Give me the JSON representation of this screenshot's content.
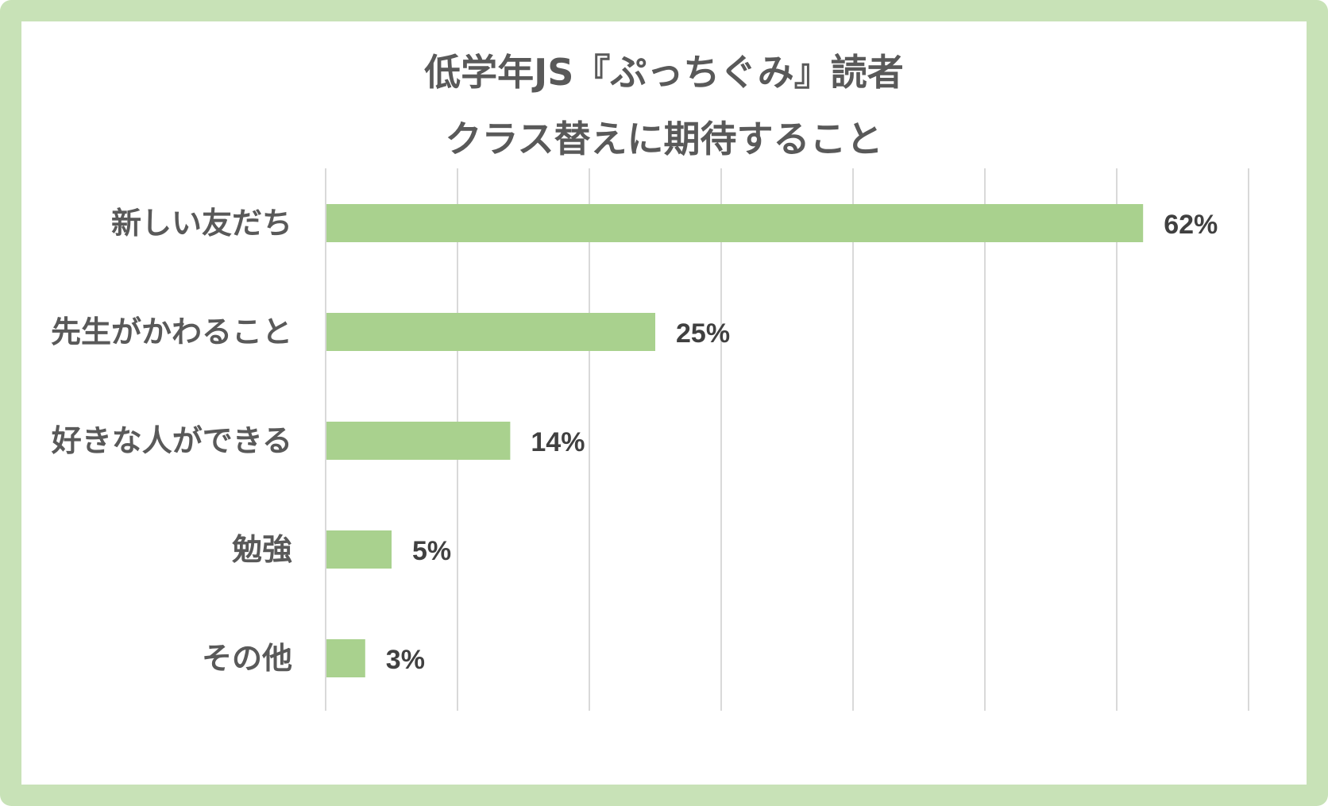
{
  "chart_data": {
    "type": "bar",
    "orientation": "horizontal",
    "title_lines": [
      "低学年JS『ぷっちぐみ』読者",
      "クラス替えに期待すること"
    ],
    "categories": [
      "新しい友だち",
      "先生がかわること",
      "好きな人ができる",
      "勉強",
      "その他"
    ],
    "values": [
      62,
      25,
      14,
      5,
      3
    ],
    "value_labels": [
      "62%",
      "25%",
      "14%",
      "5%",
      "3%"
    ],
    "unit": "%",
    "xlim": [
      0,
      70
    ],
    "x_grid_step": 10,
    "grid": true,
    "legend": "none",
    "colors": {
      "bar": "#a9d18e",
      "grid": "#d9d9d9",
      "frame": "#c8e2b7",
      "text": "#595959",
      "value_text": "#404040"
    }
  }
}
